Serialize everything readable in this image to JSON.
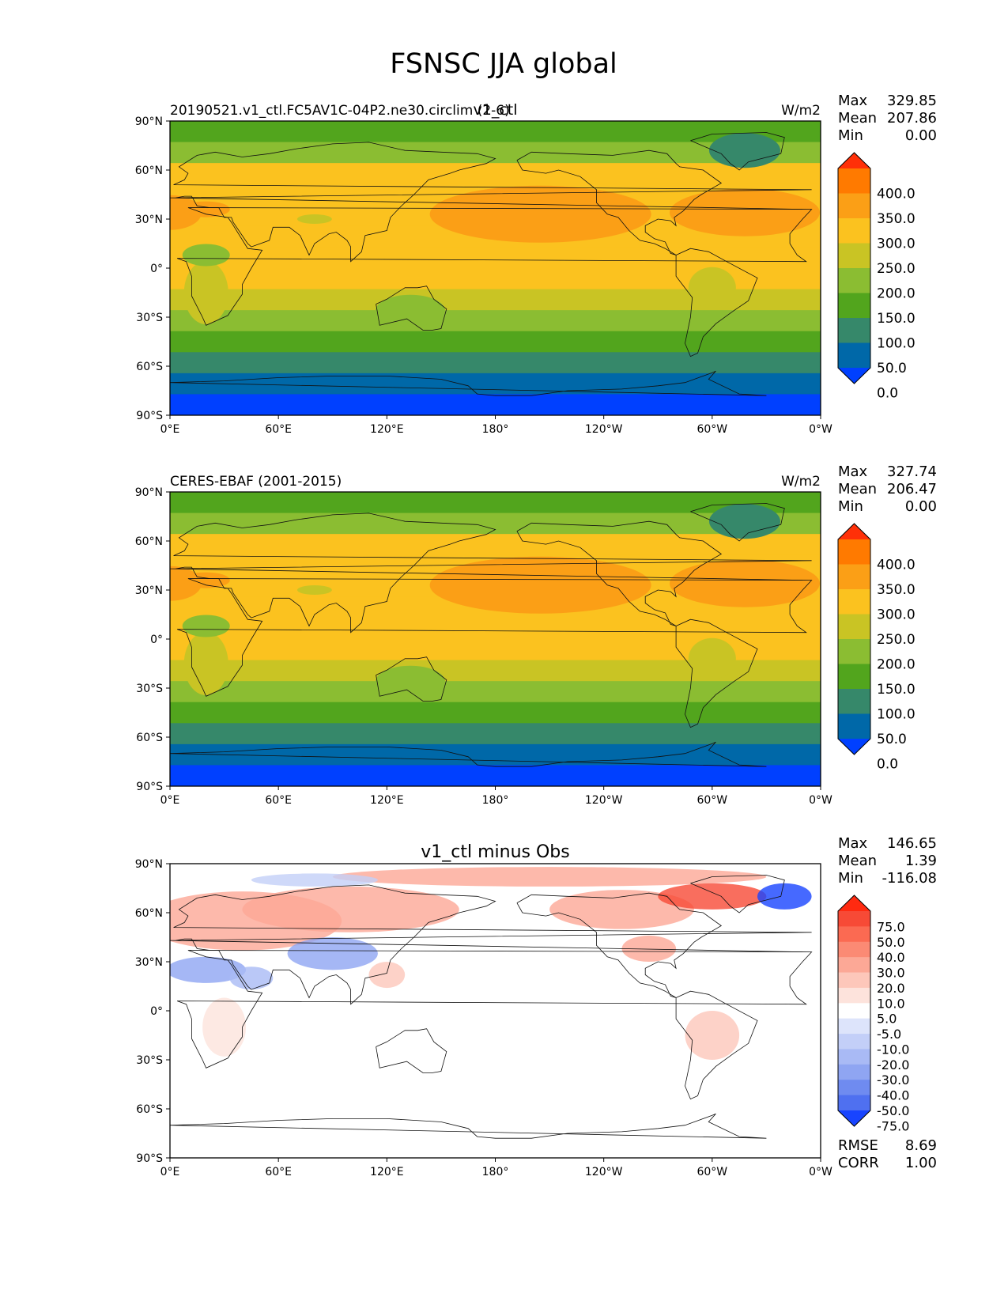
{
  "figure": {
    "title": "FSNSC JJA global"
  },
  "lat_ticks": [
    "90°N",
    "60°N",
    "30°N",
    "0°",
    "30°S",
    "60°S",
    "90°S"
  ],
  "lon_ticks": [
    "0°E",
    "60°E",
    "120°E",
    "180°",
    "120°W",
    "60°W",
    "0°W"
  ],
  "panels": [
    {
      "id": "model",
      "left_title": "20190521.v1_ctl.FC5AV1C-04P2.ne30.circlim (2-6)",
      "center_title": "v1_ctl",
      "units": "W/m2",
      "stats": {
        "max_label": "Max",
        "max": "329.85",
        "mean_label": "Mean",
        "mean": "207.86",
        "min_label": "Min",
        "min": "0.00"
      },
      "colorbar": {
        "labels": [
          "400.0",
          "350.0",
          "300.0",
          "250.0",
          "200.0",
          "150.0",
          "100.0",
          "50.0",
          "0.0"
        ],
        "colors": [
          "#ff3008",
          "#ff7a00",
          "#fb9f16",
          "#fbc21f",
          "#c9c424",
          "#8bbd32",
          "#52a51d",
          "#36886a",
          "#0068a8",
          "#0040ff"
        ]
      }
    },
    {
      "id": "obs",
      "left_title": "CERES-EBAF (2001-2015)",
      "center_title": "",
      "units": "W/m2",
      "stats": {
        "max_label": "Max",
        "max": "327.74",
        "mean_label": "Mean",
        "mean": "206.47",
        "min_label": "Min",
        "min": "0.00"
      },
      "colorbar": {
        "labels": [
          "400.0",
          "350.0",
          "300.0",
          "250.0",
          "200.0",
          "150.0",
          "100.0",
          "50.0",
          "0.0"
        ],
        "colors": [
          "#ff3008",
          "#ff7a00",
          "#fb9f16",
          "#fbc21f",
          "#c9c424",
          "#8bbd32",
          "#52a51d",
          "#36886a",
          "#0068a8",
          "#0040ff"
        ]
      }
    },
    {
      "id": "diff",
      "left_title": "",
      "center_title": "v1_ctl minus Obs",
      "units": "",
      "stats": {
        "max_label": "Max",
        "max": "146.65",
        "mean_label": "Mean",
        "mean": "1.39",
        "min_label": "Min",
        "min": "-116.08"
      },
      "colorbar": {
        "labels": [
          "75.0",
          "50.0",
          "40.0",
          "30.0",
          "20.0",
          "10.0",
          "5.0",
          "-5.0",
          "-10.0",
          "-20.0",
          "-30.0",
          "-40.0",
          "-50.0",
          "-75.0"
        ],
        "colors": [
          "#ff2a10",
          "#f74a36",
          "#fb6a52",
          "#fb8a74",
          "#fca896",
          "#fdc7ba",
          "#fde3dc",
          "#ffffff",
          "#dde4fb",
          "#c3cff8",
          "#a9baf5",
          "#8fa5f2",
          "#6f8bf0",
          "#4f70f0",
          "#1844ff"
        ]
      },
      "rmse_label": "RMSE",
      "rmse": "8.69",
      "corr_label": "CORR",
      "corr": "1.00"
    }
  ],
  "band_colors": {
    "model": [
      "#52a51d",
      "#8bbd32",
      "#fbc21f",
      "#fbc21f",
      "#fbc21f",
      "#fbc21f",
      "#fbc21f",
      "#fbc21f",
      "#c9c424",
      "#8bbd32",
      "#52a51d",
      "#36886a",
      "#0068a8",
      "#0040ff"
    ],
    "obs": [
      "#52a51d",
      "#8bbd32",
      "#fbc21f",
      "#fbc21f",
      "#fbc21f",
      "#fbc21f",
      "#fbc21f",
      "#fbc21f",
      "#c9c424",
      "#8bbd32",
      "#52a51d",
      "#36886a",
      "#0068a8",
      "#0040ff"
    ]
  }
}
